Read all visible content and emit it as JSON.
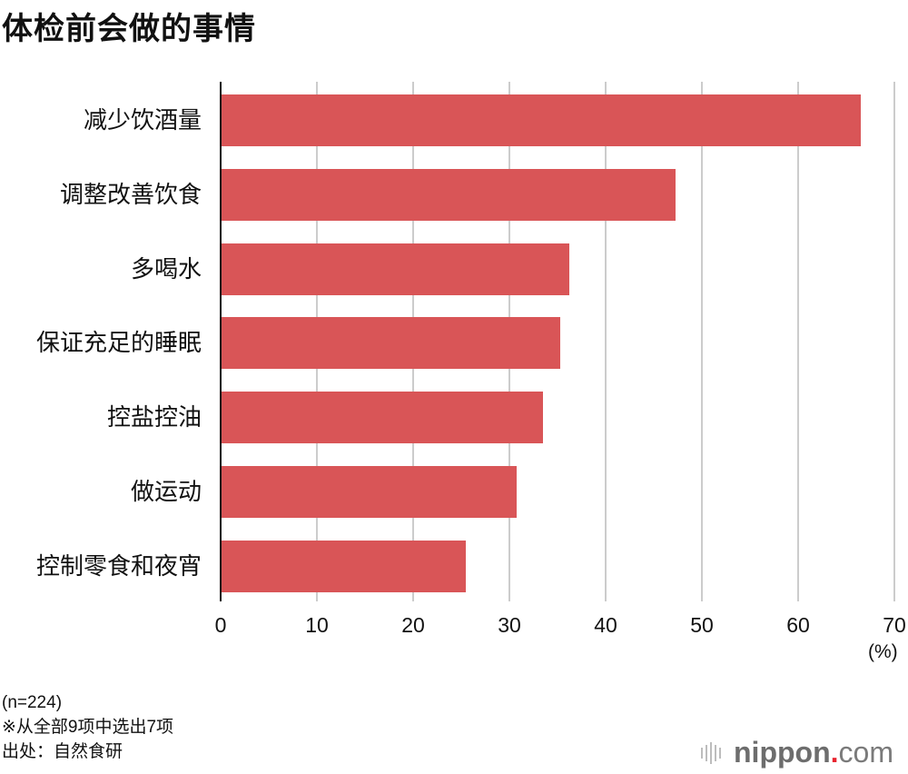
{
  "title": "体检前会做的事情",
  "chart_data": {
    "type": "bar",
    "orientation": "horizontal",
    "title": "体检前会做的事情",
    "categories": [
      "减少饮酒量",
      "调整改善饮食",
      "多喝水",
      "保证充足的睡眠",
      "控盐控油",
      "做运动",
      "控制零食和夜宵"
    ],
    "values": [
      66.5,
      47.3,
      36.2,
      35.3,
      33.5,
      30.8,
      25.5
    ],
    "xlabel": "(%)",
    "ylabel": "",
    "xlim": [
      0,
      70
    ],
    "xticks": [
      "0",
      "10",
      "20",
      "30",
      "40",
      "50",
      "60",
      "70"
    ],
    "grid": true,
    "bar_color": "#d95557",
    "legend": null
  },
  "unit": "(%)",
  "footnotes": {
    "sample": "(n=224)",
    "note": "※从全部9项中选出7项",
    "source": "出处：自然食研"
  },
  "logo": {
    "name": "nippon",
    "dot": ".",
    "suffix": "com"
  }
}
